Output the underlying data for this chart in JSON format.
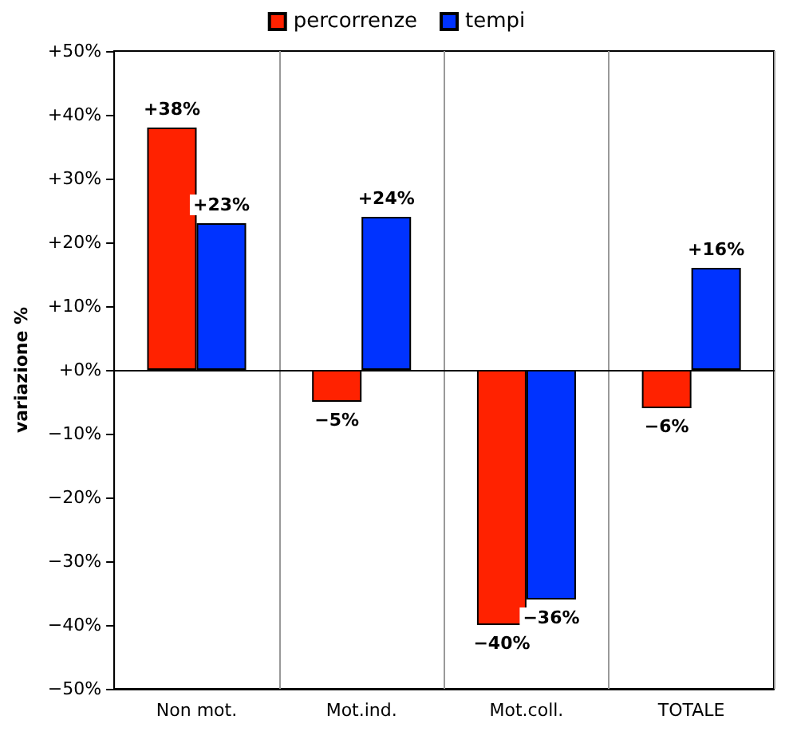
{
  "chart_data": {
    "type": "bar",
    "ylabel": "variazione %",
    "categories": [
      "Non mot.",
      "Mot.ind.",
      "Mot.coll.",
      "TOTALE"
    ],
    "series": [
      {
        "name": "percorrenze",
        "color": "#ff2200",
        "values": [
          38,
          -5,
          -40,
          -6
        ],
        "value_labels": [
          "+38%",
          "−5%",
          "−40%",
          "−6%"
        ]
      },
      {
        "name": "tempi",
        "color": "#0033ff",
        "values": [
          23,
          24,
          -36,
          16
        ],
        "value_labels": [
          "+23%",
          "+24%",
          "−36%",
          "+16%"
        ]
      }
    ],
    "ylim": [
      -50,
      50
    ],
    "yticks": [
      {
        "value": -50,
        "label": "−50%"
      },
      {
        "value": -40,
        "label": "−40%"
      },
      {
        "value": -30,
        "label": "−30%"
      },
      {
        "value": -20,
        "label": "−20%"
      },
      {
        "value": -10,
        "label": "−10%"
      },
      {
        "value": 0,
        "label": "+0%"
      },
      {
        "value": 10,
        "label": "+10%"
      },
      {
        "value": 20,
        "label": "+20%"
      },
      {
        "value": 30,
        "label": "+30%"
      },
      {
        "value": 40,
        "label": "+40%"
      },
      {
        "value": 50,
        "label": "+50%"
      }
    ],
    "grid": "x",
    "legend": "top"
  }
}
